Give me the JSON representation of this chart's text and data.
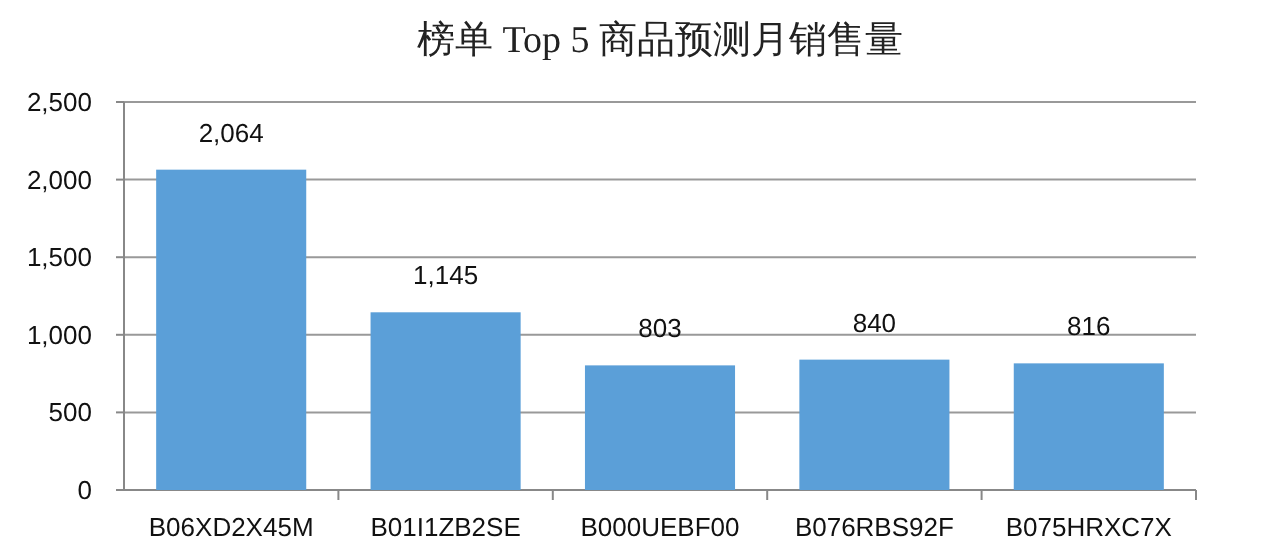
{
  "chart_data": {
    "type": "bar",
    "title": "榜单 Top 5 商品预测月销售量",
    "categories": [
      "B06XD2X45M",
      "B01I1ZB2SE",
      "B000UEBF00",
      "B076RBS92F",
      "B075HRXC7X"
    ],
    "values": [
      2064,
      1145,
      803,
      840,
      816
    ],
    "value_labels": [
      "2,064",
      "1,145",
      "803",
      "840",
      "816"
    ],
    "color": "#5b9fd8",
    "ylim": [
      0,
      2500
    ],
    "yticks": [
      0,
      {
        "value": 500,
        "label": "500"
      },
      {
        "value": 1000,
        "label": "1,000"
      },
      {
        "value": 1500,
        "label": "1,500"
      },
      {
        "value": 2000,
        "label": "2,000"
      },
      {
        "value": 2500,
        "label": "2,500"
      }
    ],
    "grid": "y"
  }
}
